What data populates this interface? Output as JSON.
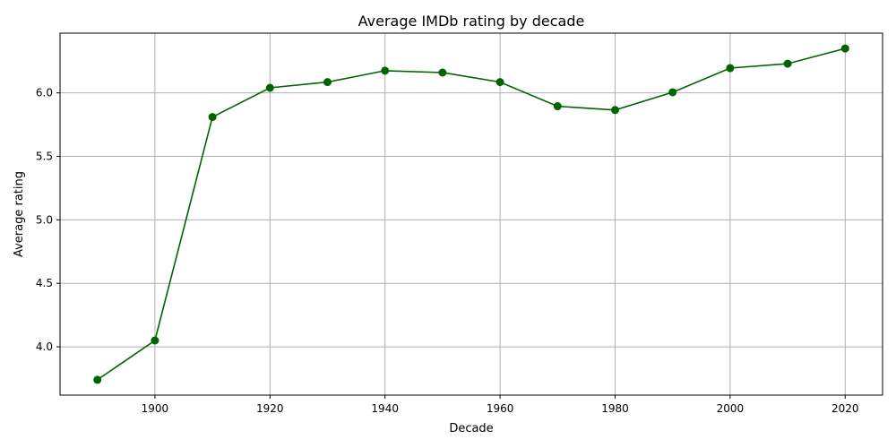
{
  "chart_data": {
    "type": "line",
    "title": "Average IMDb rating by decade",
    "xlabel": "Decade",
    "ylabel": "Average rating",
    "x": [
      1890,
      1900,
      1910,
      1920,
      1930,
      1940,
      1950,
      1960,
      1970,
      1980,
      1990,
      2000,
      2010,
      2020
    ],
    "series": [
      {
        "values": [
          3.74,
          4.05,
          5.81,
          6.04,
          6.085,
          6.175,
          6.16,
          6.085,
          5.895,
          5.865,
          6.005,
          6.195,
          6.23,
          6.35
        ],
        "color": "#006400",
        "marker": "circle"
      }
    ],
    "xticks": [
      1900,
      1920,
      1940,
      1960,
      1980,
      2000,
      2020
    ],
    "xtick_labels": [
      "1900",
      "1920",
      "1940",
      "1960",
      "1980",
      "2000",
      "2020"
    ],
    "yticks": [
      4.0,
      4.5,
      5.0,
      5.5,
      6.0
    ],
    "ytick_labels": [
      "4.0",
      "4.5",
      "5.0",
      "5.5",
      "6.0"
    ],
    "xlim": [
      1883.5,
      2026.5
    ],
    "ylim": [
      3.6195,
      6.4705
    ],
    "grid": true,
    "grid_color": "#b0b0b0",
    "axis_color": "#000000"
  }
}
